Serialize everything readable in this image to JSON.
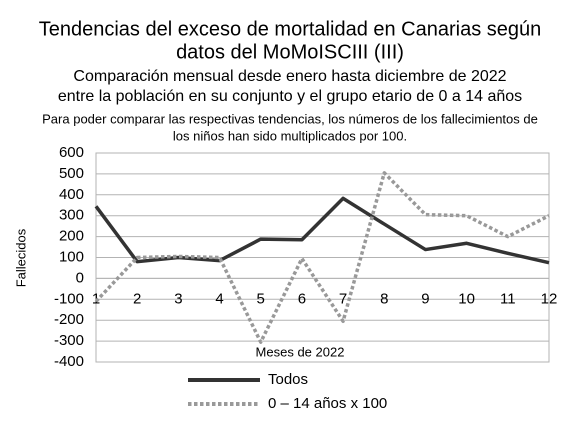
{
  "chart_data": {
    "type": "line",
    "title": [
      "Tendencias del exceso de mortalidad en Canarias según",
      "datos del MoMoISCIII (III)"
    ],
    "subtitle": [
      "Comparación mensual desde enero hasta diciembre de 2022",
      "entre la población en su conjunto y el grupo etario de 0 a 14 años"
    ],
    "note": [
      "Para poder comparar las respectivas tendencias, los números de los fallecimientos de",
      "los niños han sido multiplicados por 100."
    ],
    "x_label": "Meses de 2022",
    "y_label": "Fallecidos",
    "x": [
      1,
      2,
      3,
      4,
      5,
      6,
      7,
      8,
      9,
      10,
      11,
      12
    ],
    "xlim": [
      1,
      12
    ],
    "xticks": [
      1,
      2,
      3,
      4,
      5,
      6,
      7,
      8,
      9,
      10,
      11,
      12
    ],
    "ylim": [
      -400,
      600
    ],
    "yticks": [
      -400,
      -300,
      -200,
      -100,
      0,
      100,
      200,
      300,
      400,
      500,
      600
    ],
    "grid": true,
    "legend": "bottom",
    "series": [
      {
        "name": "Todos",
        "color": "#333333",
        "style": "solid",
        "values": [
          345,
          80,
          100,
          85,
          188,
          185,
          383,
          260,
          138,
          168,
          120,
          75
        ]
      },
      {
        "name": "0 – 14 años x 100",
        "color": "#999999",
        "style": "dotted",
        "values": [
          -110,
          100,
          105,
          100,
          -305,
          95,
          -205,
          505,
          305,
          300,
          200,
          300
        ]
      }
    ]
  }
}
